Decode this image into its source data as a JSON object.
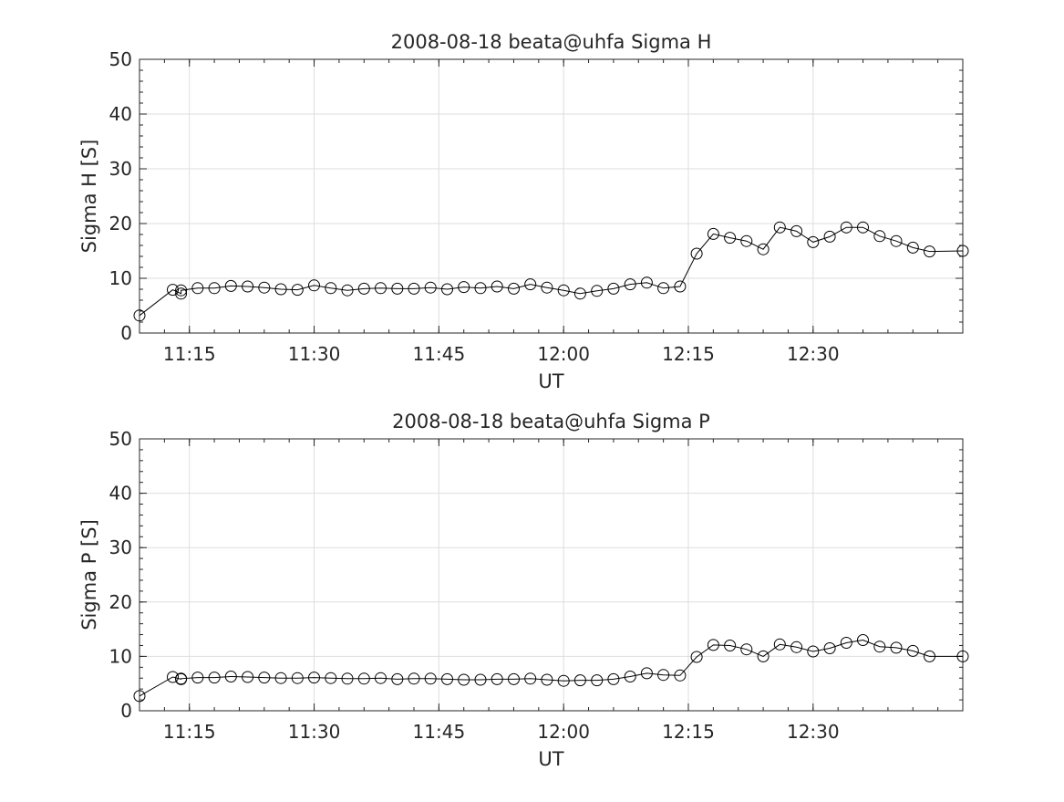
{
  "chart_data": [
    {
      "type": "line",
      "title": "2008-08-18  beata@uhfa Sigma H",
      "xlabel": "UT",
      "ylabel": "Sigma H [S]",
      "xlim": [
        "11:09",
        "12:48"
      ],
      "ylim": [
        0,
        50
      ],
      "xticks": [
        "11:15",
        "11:30",
        "11:45",
        "12:00",
        "12:15",
        "12:30"
      ],
      "yticks": [
        0,
        10,
        20,
        30,
        40,
        50
      ],
      "grid": true,
      "marker": "open-circle",
      "color": "#000000",
      "x": [
        "11:09",
        "11:13",
        "11:14",
        "11:14",
        "11:16",
        "11:18",
        "11:20",
        "11:22",
        "11:24",
        "11:26",
        "11:28",
        "11:30",
        "11:32",
        "11:34",
        "11:36",
        "11:38",
        "11:40",
        "11:42",
        "11:44",
        "11:46",
        "11:48",
        "11:50",
        "11:52",
        "11:54",
        "11:56",
        "11:58",
        "12:00",
        "12:02",
        "12:04",
        "12:06",
        "12:08",
        "12:10",
        "12:12",
        "12:14",
        "12:16",
        "12:18",
        "12:20",
        "12:22",
        "12:24",
        "12:26",
        "12:28",
        "12:30",
        "12:32",
        "12:34",
        "12:36",
        "12:38",
        "12:40",
        "12:42",
        "12:44",
        "12:48"
      ],
      "y": [
        3.2,
        7.9,
        7.2,
        7.8,
        8.2,
        8.2,
        8.6,
        8.5,
        8.3,
        8.0,
        7.9,
        8.7,
        8.2,
        7.8,
        8.1,
        8.2,
        8.1,
        8.1,
        8.3,
        8.0,
        8.4,
        8.2,
        8.5,
        8.1,
        8.9,
        8.3,
        7.8,
        7.2,
        7.7,
        8.1,
        8.9,
        9.2,
        8.2,
        8.5,
        14.5,
        18.1,
        17.4,
        16.8,
        15.3,
        19.3,
        18.6,
        16.6,
        17.6,
        19.3,
        19.3,
        17.7,
        16.8,
        15.6,
        14.9,
        15.0
      ]
    },
    {
      "type": "line",
      "title": "2008-08-18  beata@uhfa Sigma P",
      "xlabel": "UT",
      "ylabel": "Sigma P [S]",
      "xlim": [
        "11:09",
        "12:48"
      ],
      "ylim": [
        0,
        50
      ],
      "xticks": [
        "11:15",
        "11:30",
        "11:45",
        "12:00",
        "12:15",
        "12:30"
      ],
      "yticks": [
        0,
        10,
        20,
        30,
        40,
        50
      ],
      "grid": true,
      "marker": "open-circle",
      "color": "#000000",
      "x": [
        "11:09",
        "11:13",
        "11:14",
        "11:14",
        "11:16",
        "11:18",
        "11:20",
        "11:22",
        "11:24",
        "11:26",
        "11:28",
        "11:30",
        "11:32",
        "11:34",
        "11:36",
        "11:38",
        "11:40",
        "11:42",
        "11:44",
        "11:46",
        "11:48",
        "11:50",
        "11:52",
        "11:54",
        "11:56",
        "11:58",
        "12:00",
        "12:02",
        "12:04",
        "12:06",
        "12:08",
        "12:10",
        "12:12",
        "12:14",
        "12:16",
        "12:18",
        "12:20",
        "12:22",
        "12:24",
        "12:26",
        "12:28",
        "12:30",
        "12:32",
        "12:34",
        "12:36",
        "12:38",
        "12:40",
        "12:42",
        "12:44",
        "12:48"
      ],
      "y": [
        2.7,
        6.2,
        5.8,
        5.9,
        6.1,
        6.1,
        6.3,
        6.2,
        6.1,
        6.0,
        6.0,
        6.1,
        6.0,
        5.9,
        5.9,
        6.0,
        5.8,
        5.9,
        5.9,
        5.8,
        5.7,
        5.7,
        5.8,
        5.8,
        5.9,
        5.7,
        5.5,
        5.6,
        5.6,
        5.8,
        6.3,
        6.9,
        6.6,
        6.5,
        9.9,
        12.1,
        12.0,
        11.3,
        10.0,
        12.2,
        11.7,
        10.9,
        11.5,
        12.5,
        13.0,
        11.8,
        11.6,
        11.0,
        10.0,
        10.0
      ]
    }
  ]
}
